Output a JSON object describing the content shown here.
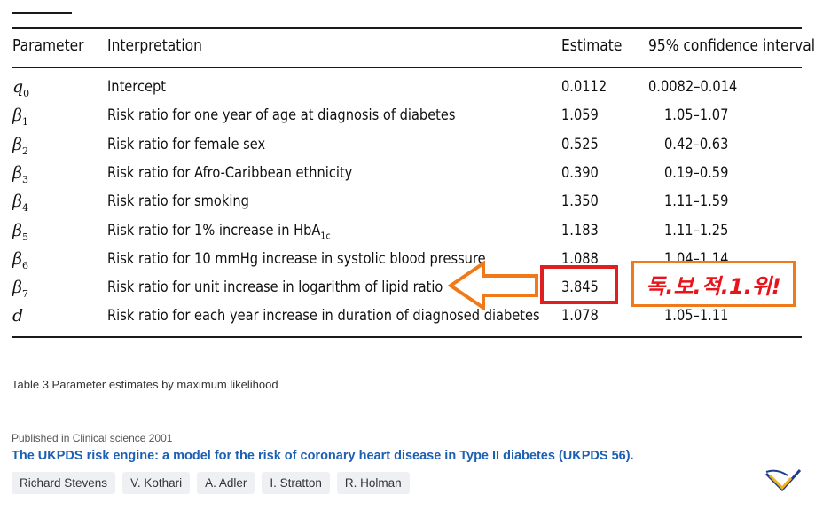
{
  "table": {
    "headers": {
      "parameter": "Parameter",
      "interpretation": "Interpretation",
      "estimate": "Estimate",
      "ci": "95% confidence interval"
    },
    "rows": [
      {
        "sym": "q",
        "sub": "0",
        "interp": "Intercept",
        "estimate": "0.0112",
        "ci": "0.0082–0.014"
      },
      {
        "sym": "β",
        "sub": "1",
        "interp": "Risk ratio for one year of age at diagnosis of diabetes",
        "estimate": "1.059",
        "ci": "1.05–1.07"
      },
      {
        "sym": "β",
        "sub": "2",
        "interp": "Risk ratio for female sex",
        "estimate": "0.525",
        "ci": "0.42–0.63"
      },
      {
        "sym": "β",
        "sub": "3",
        "interp": "Risk ratio for Afro-Caribbean ethnicity",
        "estimate": "0.390",
        "ci": "0.19–0.59"
      },
      {
        "sym": "β",
        "sub": "4",
        "interp": "Risk ratio for smoking",
        "estimate": "1.350",
        "ci": "1.11–1.59"
      },
      {
        "sym": "β",
        "sub": "5",
        "interp": "Risk ratio for 1% increase in HbA",
        "interp_sub": "1c",
        "estimate": "1.183",
        "ci": "1.11–1.25"
      },
      {
        "sym": "β",
        "sub": "6",
        "interp": "Risk ratio for 10 mmHg increase in systolic blood pressure",
        "estimate": "1.088",
        "ci": "1.04–1.14"
      },
      {
        "sym": "β",
        "sub": "7",
        "interp": "Risk ratio for unit increase in logarithm of lipid ratio",
        "estimate": "3.845",
        "ci": ""
      },
      {
        "sym": "d",
        "sub": "",
        "interp": "Risk ratio for each year increase in duration of diagnosed diabetes",
        "estimate": "1.078",
        "ci": "1.05–1.11"
      }
    ]
  },
  "annotation": {
    "text": "독.보.적.1.위!",
    "arrow_color": "#f07a1a",
    "box_color": "#e02020",
    "text_color": "#e8141c"
  },
  "caption": "Table 3 Parameter estimates by maximum likelihood",
  "publication": {
    "published_in": "Published in Clinical science 2001",
    "title": "The UKPDS risk engine: a model for the risk of coronary heart disease in Type II diabetes (UKPDS 56).",
    "authors": [
      "Richard Stevens",
      "V. Kothari",
      "A. Adler",
      "I. Stratton",
      "R. Holman"
    ],
    "link_color": "#1d5fb3"
  }
}
